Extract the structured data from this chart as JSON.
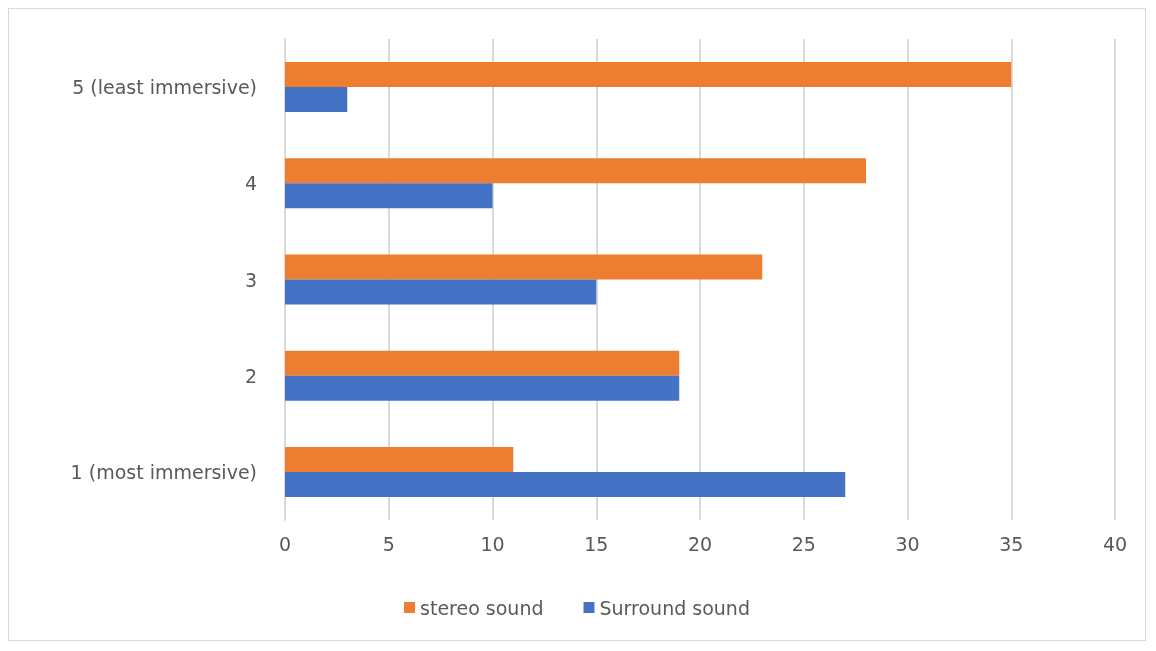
{
  "chart_data": {
    "type": "bar",
    "orientation": "horizontal",
    "categories": [
      "5 (least immersive)",
      "4",
      "3",
      "2",
      "1 (most immersive)"
    ],
    "series": [
      {
        "name": "stereo sound",
        "color": "#ed7d31",
        "values": [
          35,
          28,
          23,
          19,
          11
        ]
      },
      {
        "name": "Surround sound",
        "color": "#4472c4",
        "values": [
          3,
          10,
          15,
          19,
          27
        ]
      }
    ],
    "xlim": [
      0,
      40
    ],
    "xticks": [
      0,
      5,
      10,
      15,
      20,
      25,
      30,
      35,
      40
    ],
    "grid": "x",
    "legend": "bottom"
  }
}
